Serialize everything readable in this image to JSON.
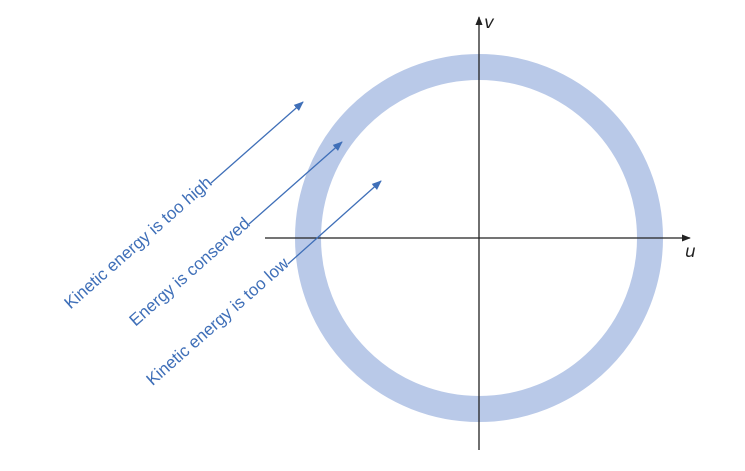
{
  "axes": {
    "horizontal_label": "u",
    "vertical_label": "v"
  },
  "annotations": [
    {
      "id": "high",
      "text": "Kinetic energy is too high"
    },
    {
      "id": "conserved",
      "text": "Energy is conserved"
    },
    {
      "id": "low",
      "text": "Kinetic energy is too low"
    }
  ],
  "colors": {
    "ring": "#b9c9e8",
    "annotation": "#3f6fb8",
    "axis": "#222222"
  }
}
